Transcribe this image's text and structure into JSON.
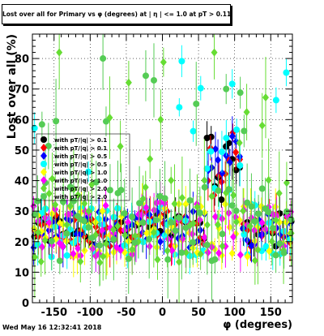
{
  "chart_data": {
    "type": "scatter",
    "title": "Lost over all for Primary vs φ (degrees) at | η | <= 1.0 at pT > 0.11",
    "xlabel": "φ (degrees)",
    "ylabel": "Lost over all (%)",
    "xlim": [
      -180,
      180
    ],
    "ylim": [
      0,
      88
    ],
    "xticks": [
      -150,
      -100,
      -50,
      0,
      50,
      100,
      150
    ],
    "yticks": [
      0,
      10,
      20,
      30,
      40,
      50,
      60,
      70,
      80
    ],
    "grid": true,
    "legend_position": "left-middle",
    "series": [
      {
        "name": "with pT/|q| > 0.1",
        "color": "#000000",
        "marker": "circle"
      },
      {
        "name": "with pT/|q| > 0.1",
        "color": "#ff0000",
        "marker": "diamond"
      },
      {
        "name": "with pT/|q| > 0.5",
        "color": "#0000ff",
        "marker": "diamond"
      },
      {
        "name": "with pT/|q| > 0.5",
        "color": "#00ffff",
        "marker": "circle"
      },
      {
        "name": "with pT/|q| > 1.0",
        "color": "#ffff00",
        "marker": "diamond"
      },
      {
        "name": "with pT/|q| > 1.0",
        "color": "#ff00ff",
        "marker": "diamond"
      },
      {
        "name": "with pT/|q| > 2.0",
        "color": "#66dd33",
        "marker": "diamond"
      },
      {
        "name": "with pT/|q| > 2.0",
        "color": "#55cc55",
        "marker": "circle"
      }
    ]
  },
  "timestamp": "Wed May 16 12:32:41 2018"
}
